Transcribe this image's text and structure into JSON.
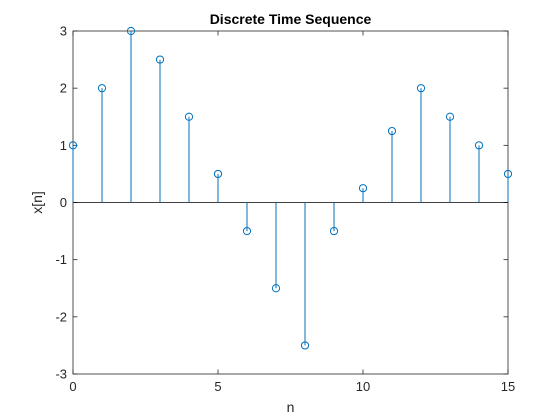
{
  "chart_data": {
    "type": "stem",
    "title": "Discrete Time Sequence",
    "xlabel": "n",
    "ylabel": "x[n]",
    "xlim": [
      0,
      15
    ],
    "ylim": [
      -3,
      3
    ],
    "xticks": [
      0,
      5,
      10,
      15
    ],
    "yticks": [
      -3,
      -2,
      -1,
      0,
      1,
      2,
      3
    ],
    "grid": false,
    "color": "#0072BD",
    "series": [
      {
        "x": [
          0,
          1,
          2,
          3,
          4,
          5,
          6,
          7,
          8,
          9,
          10,
          11,
          12,
          13,
          14,
          15
        ],
        "values": [
          1,
          2,
          3,
          2.5,
          1.5,
          0.5,
          -0.5,
          -1.5,
          -2.5,
          -0.5,
          0.25,
          1.25,
          2,
          1.5,
          1,
          0.5
        ]
      }
    ]
  }
}
